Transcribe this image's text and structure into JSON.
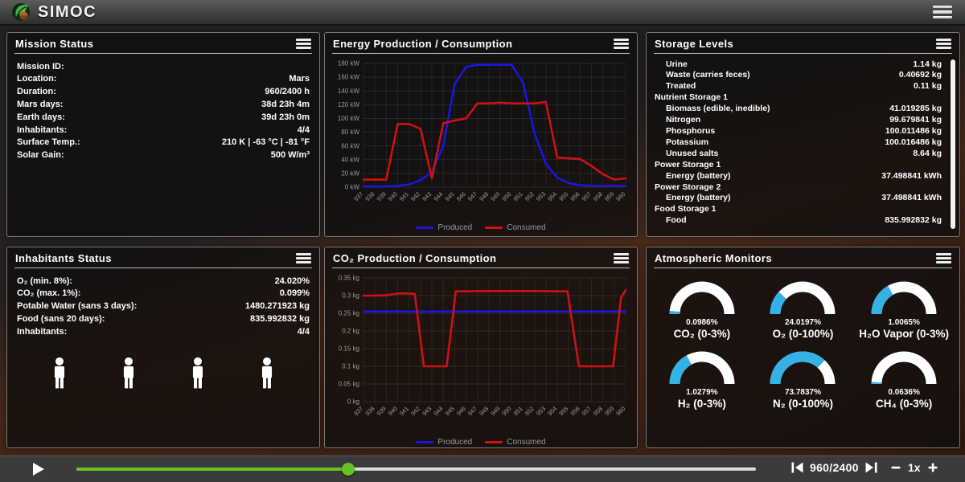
{
  "topbar": {
    "title": "SIMOC"
  },
  "colors": {
    "gauge_blue": "#35b2e5",
    "gauge_track": "#ffffff",
    "produced_blue": "#1717dd",
    "consumed_red": "#cf1111",
    "slider_green": "#62c525"
  },
  "panels": {
    "mission": {
      "title": "Mission Status",
      "rows": [
        {
          "label": "Mission ID:",
          "value": ""
        },
        {
          "label": "Location:",
          "value": "Mars"
        },
        {
          "label": "Duration:",
          "value": "960/2400 h"
        },
        {
          "label": "Mars days:",
          "value": "38d 23h 4m"
        },
        {
          "label": "Earth days:",
          "value": "39d 23h 0m"
        },
        {
          "label": "Inhabitants:",
          "value": "4/4"
        },
        {
          "label": "Surface Temp.:",
          "value": "210 K | -63 °C | -81 °F"
        },
        {
          "label": "Solar Gain:",
          "value": "500 W/m³"
        }
      ]
    },
    "energy": {
      "title": "Energy Production / Consumption"
    },
    "storage": {
      "title": "Storage Levels",
      "rows": [
        {
          "indent": 1,
          "label": "Urine",
          "value": "1.14 kg"
        },
        {
          "indent": 1,
          "label": "Waste (carries feces)",
          "value": "0.40692 kg"
        },
        {
          "indent": 1,
          "label": "Treated",
          "value": "0.11 kg"
        },
        {
          "indent": 0,
          "label": "Nutrient Storage 1",
          "value": ""
        },
        {
          "indent": 1,
          "label": "Biomass (edible, inedible)",
          "value": "41.019285 kg"
        },
        {
          "indent": 1,
          "label": "Nitrogen",
          "value": "99.679841 kg"
        },
        {
          "indent": 1,
          "label": "Phosphorus",
          "value": "100.011486 kg"
        },
        {
          "indent": 1,
          "label": "Potassium",
          "value": "100.016486 kg"
        },
        {
          "indent": 1,
          "label": "Unused salts",
          "value": "8.64 kg"
        },
        {
          "indent": 0,
          "label": "Power Storage 1",
          "value": ""
        },
        {
          "indent": 1,
          "label": "Energy (battery)",
          "value": "37.498841 kWh"
        },
        {
          "indent": 0,
          "label": "Power Storage 2",
          "value": ""
        },
        {
          "indent": 1,
          "label": "Energy (battery)",
          "value": "37.498841 kWh"
        },
        {
          "indent": 0,
          "label": "Food Storage 1",
          "value": ""
        },
        {
          "indent": 1,
          "label": "Food",
          "value": "835.992832 kg"
        }
      ]
    },
    "inhabitants": {
      "title": "Inhabitants Status",
      "rows": [
        {
          "label": "O₂ (min. 8%):",
          "value": "24.020%"
        },
        {
          "label": "CO₂ (max. 1%):",
          "value": "0.099%"
        },
        {
          "label": "Potable Water (sans 3 days):",
          "value": "1480.271923 kg"
        },
        {
          "label": "Food (sans 20 days):",
          "value": "835.992832 kg"
        },
        {
          "label": "Inhabitants:",
          "value": "4/4"
        }
      ],
      "figure_count": 4
    },
    "co2": {
      "title": "CO₂ Production / Consumption"
    },
    "atmo": {
      "title": "Atmospheric Monitors",
      "gauges": [
        {
          "label": "CO₂ (0-3%)",
          "value_label": "0.0986%",
          "value": 0.0986,
          "min": 0,
          "max": 3
        },
        {
          "label": "O₂ (0-100%)",
          "value_label": "24.0197%",
          "value": 24.0197,
          "min": 0,
          "max": 100
        },
        {
          "label": "H₂O Vapor (0-3%)",
          "value_label": "1.0065%",
          "value": 1.0065,
          "min": 0,
          "max": 3
        },
        {
          "label": "H₂ (0-3%)",
          "value_label": "1.0279%",
          "value": 1.0279,
          "min": 0,
          "max": 3
        },
        {
          "label": "N₂ (0-100%)",
          "value_label": "73.7837%",
          "value": 73.7837,
          "min": 0,
          "max": 100
        },
        {
          "label": "CH₄ (0-3%)",
          "value_label": "0.0636%",
          "value": 0.0636,
          "min": 0,
          "max": 3
        }
      ]
    }
  },
  "chart_data": [
    {
      "id": "energy",
      "type": "line",
      "title": "Energy Production / Consumption",
      "xlabel": "",
      "ylabel": "kW",
      "y_unit": "kW",
      "xlim": [
        937,
        960
      ],
      "ylim": [
        0,
        180
      ],
      "x_ticks": [
        937,
        938,
        939,
        940,
        941,
        942,
        943,
        944,
        945,
        946,
        947,
        948,
        949,
        950,
        951,
        952,
        953,
        954,
        955,
        956,
        957,
        958,
        959,
        960
      ],
      "y_ticks": [
        0,
        20,
        40,
        60,
        80,
        100,
        120,
        140,
        160,
        180
      ],
      "grid": true,
      "legend_position": "bottom",
      "series": [
        {
          "name": "Produced",
          "color": "#1717dd",
          "points": [
            [
              937,
              1
            ],
            [
              938,
              1
            ],
            [
              939,
              1
            ],
            [
              940,
              2
            ],
            [
              941,
              4
            ],
            [
              942,
              10
            ],
            [
              943,
              22
            ],
            [
              944,
              60
            ],
            [
              945,
              150
            ],
            [
              946,
              175
            ],
            [
              947,
              178
            ],
            [
              948,
              178
            ],
            [
              949,
              178
            ],
            [
              950,
              178
            ],
            [
              951,
              152
            ],
            [
              952,
              79
            ],
            [
              953,
              34
            ],
            [
              954,
              14
            ],
            [
              955,
              6
            ],
            [
              956,
              3
            ],
            [
              957,
              2
            ],
            [
              958,
              2
            ],
            [
              959,
              2
            ],
            [
              960,
              2
            ]
          ]
        },
        {
          "name": "Consumed",
          "color": "#cf1111",
          "points": [
            [
              937,
              11
            ],
            [
              938,
              11
            ],
            [
              939,
              11
            ],
            [
              940,
              92
            ],
            [
              941,
              92
            ],
            [
              942,
              85
            ],
            [
              943,
              13
            ],
            [
              944,
              93
            ],
            [
              945,
              97
            ],
            [
              946,
              100
            ],
            [
              947,
              122
            ],
            [
              948,
              122
            ],
            [
              949,
              123
            ],
            [
              950,
              122
            ],
            [
              951,
              122
            ],
            [
              952,
              122
            ],
            [
              953,
              124
            ],
            [
              954,
              43
            ],
            [
              955,
              42
            ],
            [
              956,
              41
            ],
            [
              957,
              31
            ],
            [
              958,
              19
            ],
            [
              959,
              11
            ],
            [
              960,
              13
            ]
          ]
        }
      ]
    },
    {
      "id": "co2",
      "type": "line",
      "title": "CO₂ Production / Consumption",
      "xlabel": "",
      "ylabel": "kg",
      "y_unit": "kg",
      "xlim": [
        937,
        960
      ],
      "ylim": [
        0,
        0.35
      ],
      "x_ticks": [
        937,
        938,
        939,
        940,
        941,
        942,
        943,
        944,
        945,
        946,
        947,
        948,
        949,
        950,
        951,
        952,
        953,
        954,
        955,
        956,
        957,
        958,
        959,
        960
      ],
      "y_ticks": [
        0,
        0.05,
        0.1,
        0.15,
        0.2,
        0.25,
        0.3,
        0.35
      ],
      "grid": true,
      "legend_position": "bottom",
      "series": [
        {
          "name": "Produced",
          "color": "#1717dd",
          "points": [
            [
              937,
              0.255
            ],
            [
              940,
              0.2552
            ],
            [
              943,
              0.2548
            ],
            [
              946,
              0.2553
            ],
            [
              949,
              0.2551
            ],
            [
              952,
              0.2553
            ],
            [
              955,
              0.2551
            ],
            [
              958,
              0.2553
            ],
            [
              960,
              0.2553
            ]
          ]
        },
        {
          "name": "Consumed",
          "color": "#cf1111",
          "points": [
            [
              937,
              0.3
            ],
            [
              938,
              0.3
            ],
            [
              939,
              0.301
            ],
            [
              940,
              0.306
            ],
            [
              941,
              0.306
            ],
            [
              941.5,
              0.305
            ],
            [
              942.3,
              0.1
            ],
            [
              944.3,
              0.1
            ],
            [
              945.1,
              0.312
            ],
            [
              948,
              0.313
            ],
            [
              952,
              0.313
            ],
            [
              954.9,
              0.312
            ],
            [
              955.9,
              0.1
            ],
            [
              958.9,
              0.1
            ],
            [
              959.6,
              0.295
            ],
            [
              960,
              0.315
            ]
          ]
        }
      ]
    }
  ],
  "playback": {
    "position_label": "960/2400",
    "speed_label": "1x",
    "slider": {
      "value": 960,
      "max": 2400
    }
  }
}
